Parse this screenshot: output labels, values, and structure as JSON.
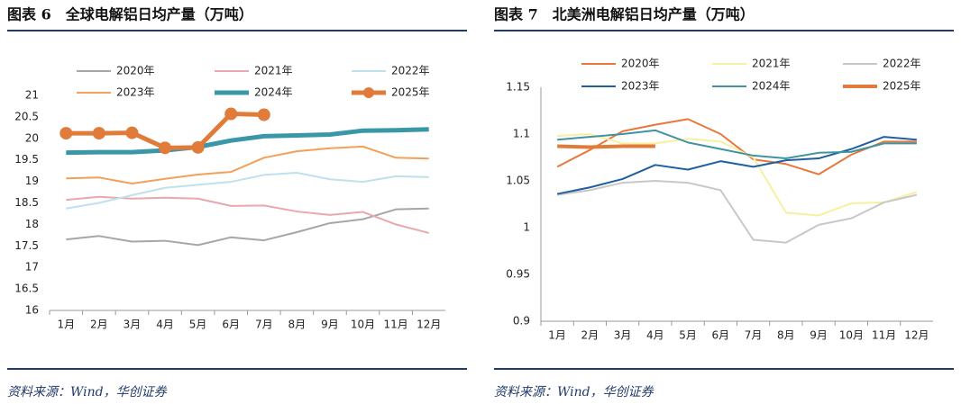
{
  "chart_data": [
    {
      "type": "line",
      "title": "图表 6　全球电解铝日均产量（万吨）",
      "source": "资料来源：Wind，华创证券",
      "categories": [
        "1月",
        "2月",
        "3月",
        "4月",
        "5月",
        "6月",
        "7月",
        "8月",
        "9月",
        "10月",
        "11月",
        "12月"
      ],
      "ylim": [
        16,
        21
      ],
      "yticks": [
        16,
        16.5,
        17,
        17.5,
        18,
        18.5,
        19,
        19.5,
        20,
        20.5,
        21
      ],
      "series": [
        {
          "name": "2020年",
          "color": "#a6a6a6",
          "width": 2,
          "values": [
            17.65,
            17.73,
            17.6,
            17.62,
            17.52,
            17.7,
            17.63,
            17.82,
            18.03,
            18.12,
            18.35,
            18.37
          ]
        },
        {
          "name": "2021年",
          "color": "#e8a9ad",
          "width": 2,
          "values": [
            18.57,
            18.64,
            18.6,
            18.62,
            18.6,
            18.43,
            18.44,
            18.3,
            18.22,
            18.29,
            18.0,
            17.8
          ]
        },
        {
          "name": "2022年",
          "color": "#bfe0ec",
          "width": 2,
          "values": [
            18.37,
            18.5,
            18.68,
            18.85,
            18.92,
            18.99,
            19.15,
            19.2,
            19.05,
            18.99,
            19.12,
            19.1
          ]
        },
        {
          "name": "2023年",
          "color": "#f2a05a",
          "width": 2,
          "values": [
            19.07,
            19.09,
            18.95,
            19.06,
            19.16,
            19.22,
            19.55,
            19.7,
            19.77,
            19.81,
            19.55,
            19.53
          ]
        },
        {
          "name": "2024年",
          "color": "#3a97a8",
          "width": 5,
          "values": [
            19.67,
            19.68,
            19.68,
            19.72,
            19.8,
            19.95,
            20.05,
            20.07,
            20.09,
            20.18,
            20.19,
            20.21
          ]
        },
        {
          "name": "2025年",
          "color": "#e07b39",
          "width": 5,
          "marker": true,
          "values": [
            20.12,
            20.12,
            20.13,
            19.78,
            19.79,
            20.57,
            20.55,
            null,
            null,
            null,
            null,
            null
          ]
        }
      ]
    },
    {
      "type": "line",
      "title": "图表 7　北美洲电解铝日均产量（万吨）",
      "source": "资料来源：Wind，华创证券",
      "categories": [
        "1月",
        "2月",
        "3月",
        "4月",
        "5月",
        "6月",
        "7月",
        "8月",
        "9月",
        "10月",
        "11月",
        "12月"
      ],
      "ylim": [
        0.9,
        1.15
      ],
      "yticks": [
        0.9,
        0.95,
        1,
        1.05,
        1.1,
        1.15
      ],
      "series": [
        {
          "name": "2020年",
          "color": "#e8773a",
          "width": 2,
          "values": [
            1.065,
            1.083,
            1.103,
            1.11,
            1.116,
            1.1,
            1.073,
            1.068,
            1.057,
            1.078,
            1.092,
            1.092
          ]
        },
        {
          "name": "2021年",
          "color": "#f7f0a0",
          "width": 2,
          "values": [
            1.098,
            1.1,
            1.09,
            1.09,
            1.095,
            1.092,
            1.075,
            1.016,
            1.013,
            1.026,
            1.027,
            1.038
          ]
        },
        {
          "name": "2022年",
          "color": "#c8c8c8",
          "width": 2,
          "values": [
            1.035,
            1.04,
            1.048,
            1.05,
            1.048,
            1.04,
            0.987,
            0.984,
            1.003,
            1.01,
            1.027,
            1.035
          ]
        },
        {
          "name": "2023年",
          "color": "#1f5fa0",
          "width": 2,
          "values": [
            1.036,
            1.043,
            1.052,
            1.067,
            1.062,
            1.071,
            1.065,
            1.072,
            1.074,
            1.084,
            1.097,
            1.094
          ]
        },
        {
          "name": "2024年",
          "color": "#3f93a3",
          "width": 2,
          "values": [
            1.094,
            1.097,
            1.1,
            1.104,
            1.091,
            1.084,
            1.077,
            1.074,
            1.08,
            1.081,
            1.09,
            1.09
          ]
        },
        {
          "name": "2025年",
          "color": "#e07b39",
          "width": 4,
          "values": [
            1.087,
            1.086,
            1.087,
            1.087,
            null,
            null,
            null,
            null,
            null,
            null,
            null,
            null
          ]
        }
      ]
    }
  ]
}
